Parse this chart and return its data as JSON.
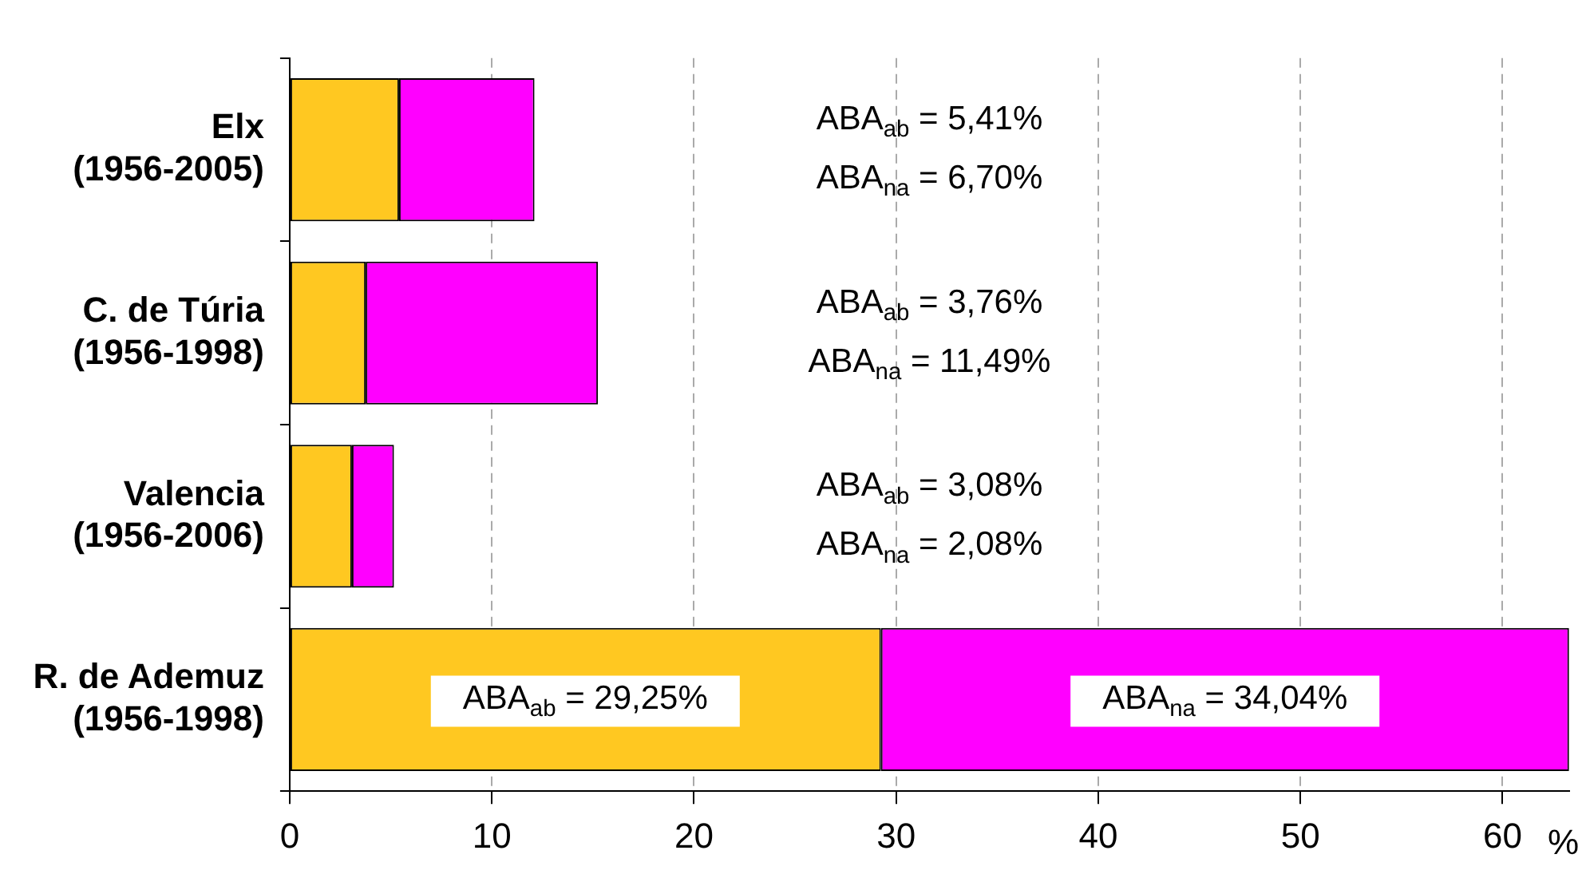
{
  "chart_data": {
    "type": "bar",
    "orientation": "horizontal",
    "stacked": true,
    "categories": [
      "Elx (1956-2005)",
      "C. de Túria (1956-1998)",
      "Valencia (1956-2006)",
      "R. de Ademuz (1956-1998)"
    ],
    "series": [
      {
        "color": "#ffc821",
        "values": [
          5.41,
          3.76,
          3.08,
          29.25
        ],
        "value_labels": [
          null,
          null,
          null,
          "ABA$_{ab}$ = 29,25%"
        ]
      },
      {
        "color": "#ff00ff",
        "values": [
          6.7,
          11.49,
          2.08,
          34.04
        ],
        "value_labels": [
          null,
          null,
          null,
          "ABA$_{na}$ = 34,04%"
        ]
      }
    ],
    "xlim": [
      0,
      63.3
    ],
    "xticks": [
      0,
      10,
      20,
      30,
      40,
      50,
      60
    ],
    "xlabel": "%",
    "grid": "x",
    "legend": false,
    "annotations": [
      "ABA$_{ab}$ = 5,41%",
      "ABA$_{na}$ = 6,70%",
      "ABA$_{ab}$ = 3,76%",
      "ABA$_{na}$ = 11,49%",
      "ABA$_{ab}$ = 3,08%",
      "ABA$_{na}$ = 2,08%"
    ]
  }
}
